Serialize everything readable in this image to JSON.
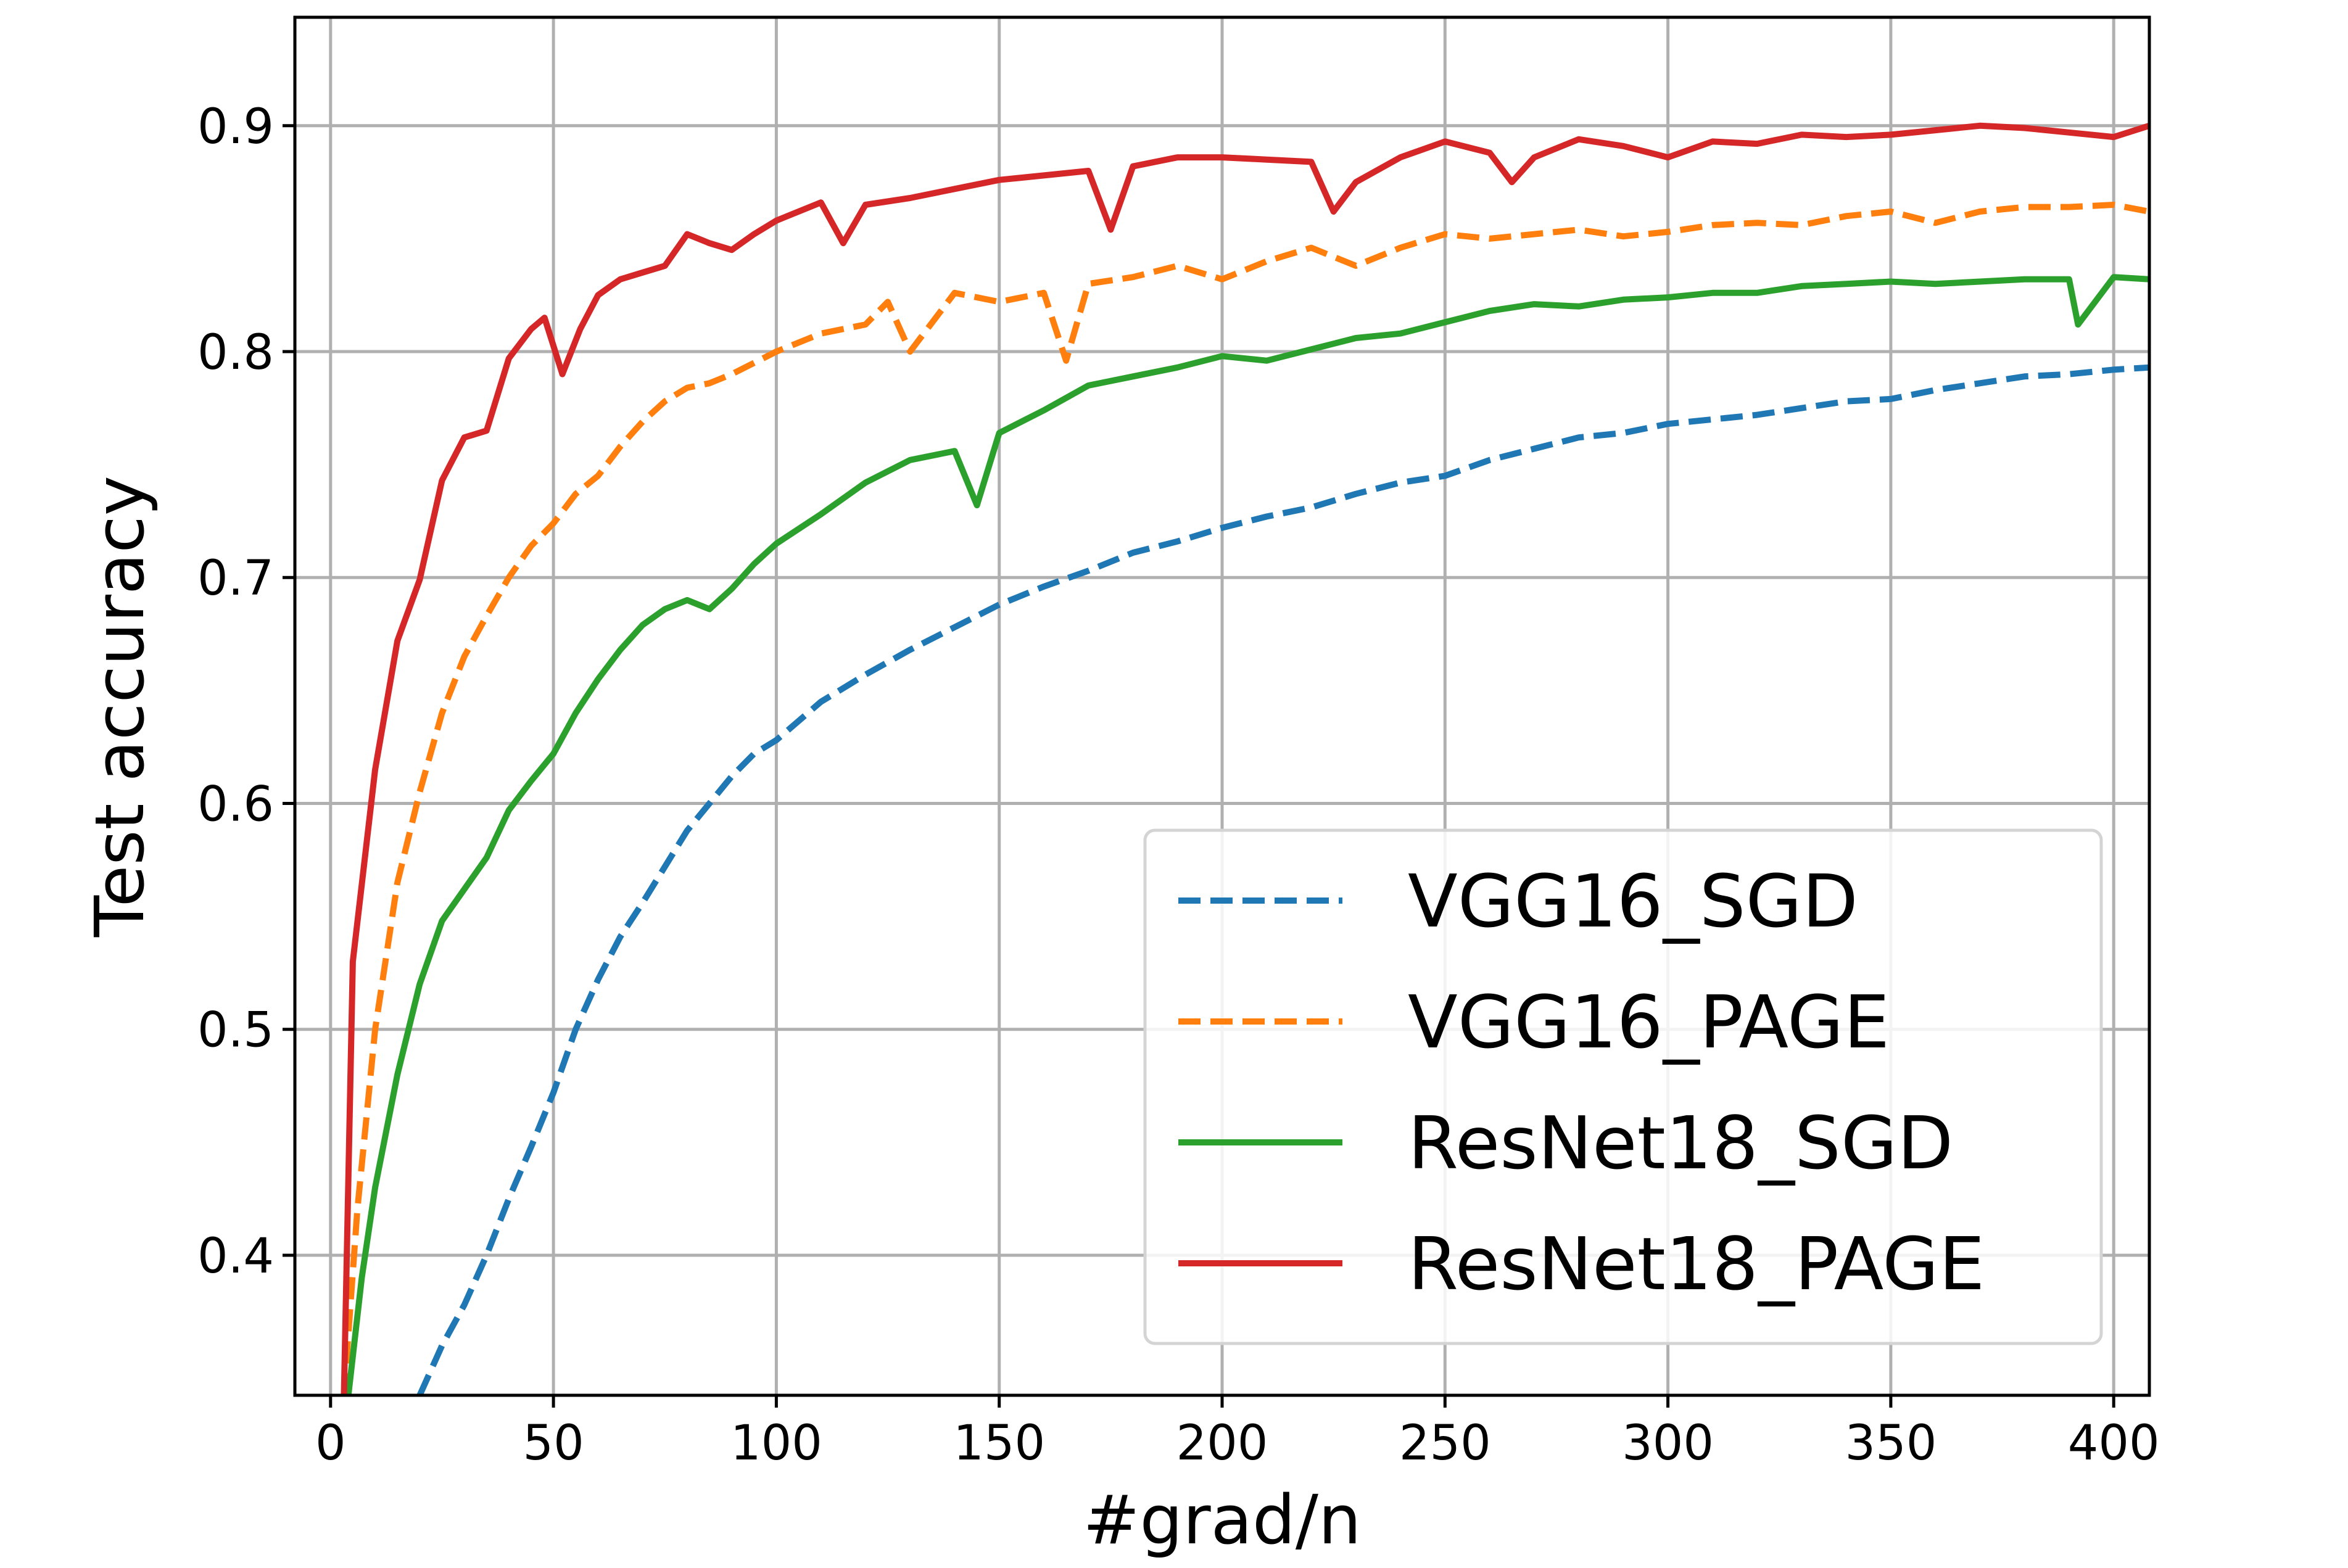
{
  "chart_data": {
    "type": "line",
    "title": "",
    "xlabel": "#grad/n",
    "ylabel": "Test accuracy",
    "xlim": [
      -8,
      408
    ],
    "ylim": [
      0.338,
      0.948
    ],
    "xticks": [
      0,
      50,
      100,
      150,
      200,
      250,
      300,
      350,
      400
    ],
    "xtick_labels": [
      "0",
      "50",
      "100",
      "150",
      "200",
      "250",
      "300",
      "350",
      "400"
    ],
    "yticks": [
      0.4,
      0.5,
      0.6,
      0.7,
      0.8,
      0.9
    ],
    "ytick_labels": [
      "0.4",
      "0.5",
      "0.6",
      "0.7",
      "0.8",
      "0.9"
    ],
    "grid": true,
    "legend": {
      "placement": "lower-right"
    },
    "series": [
      {
        "name": "VGG16_SGD",
        "color": "#1f77b4",
        "style": "dashed",
        "x": [
          20,
          25,
          30,
          35,
          40,
          45,
          50,
          55,
          60,
          65,
          70,
          75,
          80,
          85,
          90,
          95,
          100,
          110,
          120,
          130,
          140,
          150,
          160,
          170,
          180,
          190,
          200,
          210,
          220,
          230,
          240,
          250,
          260,
          270,
          280,
          290,
          300,
          310,
          320,
          330,
          340,
          350,
          360,
          370,
          380,
          390,
          400,
          408
        ],
        "y": [
          0.338,
          0.36,
          0.378,
          0.4,
          0.425,
          0.448,
          0.472,
          0.5,
          0.522,
          0.541,
          0.556,
          0.572,
          0.588,
          0.6,
          0.612,
          0.622,
          0.628,
          0.645,
          0.657,
          0.668,
          0.678,
          0.688,
          0.696,
          0.703,
          0.711,
          0.716,
          0.722,
          0.727,
          0.731,
          0.737,
          0.742,
          0.745,
          0.752,
          0.757,
          0.762,
          0.764,
          0.768,
          0.77,
          0.772,
          0.775,
          0.778,
          0.779,
          0.783,
          0.786,
          0.789,
          0.79,
          0.792,
          0.793
        ]
      },
      {
        "name": "VGG16_PAGE",
        "color": "#ff7f0e",
        "style": "dashed",
        "x": [
          3,
          6,
          10,
          15,
          20,
          25,
          30,
          35,
          40,
          45,
          50,
          55,
          60,
          65,
          70,
          75,
          80,
          85,
          90,
          95,
          100,
          110,
          120,
          125,
          130,
          140,
          150,
          160,
          165,
          170,
          180,
          190,
          200,
          210,
          220,
          230,
          240,
          250,
          260,
          270,
          280,
          290,
          300,
          310,
          320,
          330,
          340,
          350,
          360,
          370,
          380,
          390,
          400,
          408
        ],
        "y": [
          0.338,
          0.42,
          0.5,
          0.565,
          0.605,
          0.64,
          0.665,
          0.683,
          0.7,
          0.714,
          0.724,
          0.737,
          0.745,
          0.758,
          0.769,
          0.778,
          0.784,
          0.786,
          0.79,
          0.795,
          0.8,
          0.808,
          0.812,
          0.822,
          0.8,
          0.826,
          0.822,
          0.826,
          0.796,
          0.83,
          0.833,
          0.838,
          0.832,
          0.84,
          0.846,
          0.838,
          0.846,
          0.852,
          0.85,
          0.852,
          0.854,
          0.851,
          0.853,
          0.856,
          0.857,
          0.856,
          0.86,
          0.862,
          0.857,
          0.862,
          0.864,
          0.864,
          0.865,
          0.862
        ]
      },
      {
        "name": "ResNet18_SGD",
        "color": "#2ca02c",
        "style": "solid",
        "x": [
          4,
          7,
          10,
          15,
          20,
          25,
          30,
          35,
          40,
          45,
          50,
          55,
          60,
          65,
          70,
          75,
          80,
          85,
          90,
          95,
          100,
          110,
          120,
          130,
          140,
          145,
          150,
          160,
          170,
          180,
          190,
          200,
          210,
          220,
          230,
          240,
          250,
          260,
          270,
          280,
          290,
          300,
          310,
          320,
          330,
          340,
          350,
          360,
          370,
          380,
          390,
          392,
          400,
          408
        ],
        "y": [
          0.338,
          0.39,
          0.43,
          0.48,
          0.52,
          0.548,
          0.562,
          0.576,
          0.597,
          0.61,
          0.622,
          0.64,
          0.655,
          0.668,
          0.679,
          0.686,
          0.69,
          0.686,
          0.695,
          0.706,
          0.715,
          0.728,
          0.742,
          0.752,
          0.756,
          0.732,
          0.764,
          0.774,
          0.785,
          0.789,
          0.793,
          0.798,
          0.796,
          0.801,
          0.806,
          0.808,
          0.813,
          0.818,
          0.821,
          0.82,
          0.823,
          0.824,
          0.826,
          0.826,
          0.829,
          0.83,
          0.831,
          0.83,
          0.831,
          0.832,
          0.832,
          0.812,
          0.833,
          0.832
        ]
      },
      {
        "name": "ResNet18_PAGE",
        "color": "#d62728",
        "style": "solid",
        "x": [
          3,
          5,
          10,
          15,
          20,
          25,
          30,
          35,
          40,
          45,
          48,
          52,
          56,
          60,
          65,
          70,
          75,
          80,
          85,
          90,
          95,
          100,
          110,
          115,
          120,
          130,
          140,
          150,
          160,
          170,
          175,
          180,
          190,
          200,
          210,
          220,
          225,
          230,
          240,
          250,
          260,
          265,
          270,
          280,
          290,
          300,
          310,
          320,
          330,
          340,
          350,
          360,
          370,
          380,
          390,
          400,
          408
        ],
        "y": [
          0.338,
          0.53,
          0.615,
          0.672,
          0.699,
          0.743,
          0.762,
          0.765,
          0.797,
          0.81,
          0.815,
          0.79,
          0.81,
          0.825,
          0.832,
          0.835,
          0.838,
          0.852,
          0.848,
          0.845,
          0.852,
          0.858,
          0.866,
          0.848,
          0.865,
          0.868,
          0.872,
          0.876,
          0.878,
          0.88,
          0.854,
          0.882,
          0.886,
          0.886,
          0.885,
          0.884,
          0.862,
          0.875,
          0.886,
          0.893,
          0.888,
          0.875,
          0.886,
          0.894,
          0.891,
          0.886,
          0.893,
          0.892,
          0.896,
          0.895,
          0.896,
          0.898,
          0.9,
          0.899,
          0.897,
          0.895,
          0.9
        ]
      }
    ]
  }
}
